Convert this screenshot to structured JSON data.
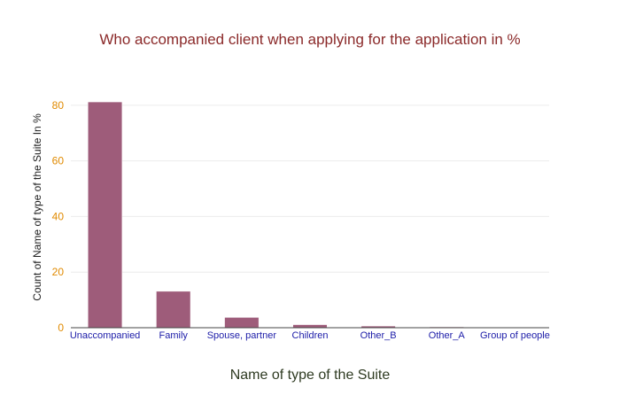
{
  "chart_data": {
    "type": "bar",
    "title": "Who accompanied client when applying for the  application in %",
    "xlabel": "Name of type of the Suite",
    "ylabel": "Count of Name of type of the Suite In %",
    "categories": [
      "Unaccompanied",
      "Family",
      "Spouse, partner",
      "Children",
      "Other_B",
      "Other_A",
      "Group of people"
    ],
    "values": [
      81.2,
      13.1,
      3.7,
      1.1,
      0.6,
      0.3,
      0.1
    ],
    "ylim": [
      0,
      86
    ],
    "yticks": [
      0,
      20,
      40,
      60,
      80
    ],
    "grid": true,
    "legend": "none",
    "bar_color": "#9e5c7a",
    "colors": {
      "title": "#8b2a2a",
      "ytick": "#e08a00",
      "xtick": "#1c1ca8",
      "xlabel": "#2f3b22"
    }
  }
}
